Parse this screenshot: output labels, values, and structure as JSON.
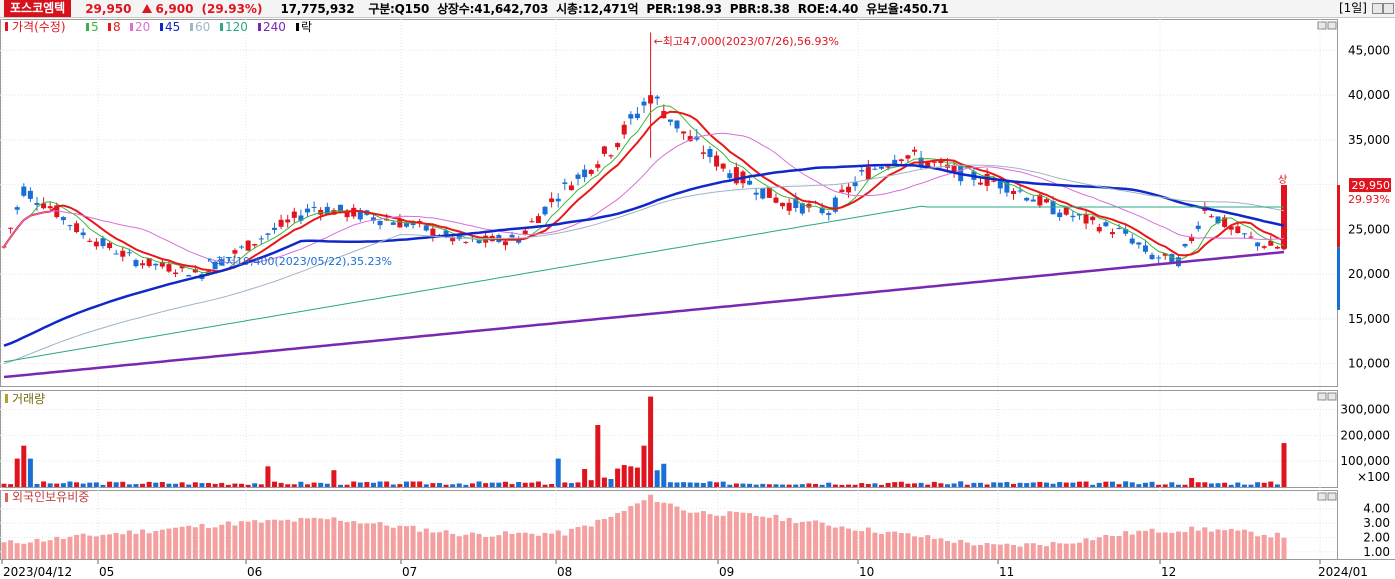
{
  "header": {
    "stock_name": "포스코엠텍",
    "price": "29,950",
    "change": "6,900",
    "change_pct": "(29.93%)",
    "volume": "17,775,932",
    "market": "구분:Q150",
    "shares": "상장수:41,642,703",
    "market_cap": "시총:12,471억",
    "per": "PER:198.93",
    "pbr": "PBR:8.38",
    "roe": "ROE:4.40",
    "float_ratio": "유보율:450.71",
    "period": "[1일]"
  },
  "colors": {
    "up": "#e0141e",
    "down": "#1a6fd6",
    "ma5": "#3cb43c",
    "ma8": "#e81818",
    "ma20": "#d870d8",
    "ma45": "#1028c8",
    "ma60": "#a0b4c4",
    "ma120": "#2aa888",
    "ma240": "#7a28b4",
    "foreign": "#f4a0a0"
  },
  "chart_data": [
    {
      "type": "line",
      "title": "가격(수정)",
      "legend": [
        "5",
        "8",
        "20",
        "45",
        "60",
        "120",
        "240",
        "락"
      ],
      "y_ticks": [
        "45,000",
        "40,000",
        "35,000",
        "30,000",
        "25,000",
        "20,000",
        "15,000",
        "10,000"
      ],
      "ylim": [
        7500,
        48500
      ],
      "x_ticks": [
        "2023/04/12",
        "05",
        "06",
        "07",
        "08",
        "09",
        "10",
        "11",
        "12",
        "2024/01"
      ],
      "last_price_label": "29,950",
      "last_pct_label": "29.93%",
      "upper_limit_label": "상",
      "annotations": {
        "high": "최고47,000(2023/07/26),56.93%",
        "low": "최저19,400(2023/05/22),35.23%"
      },
      "ohlc_sample": [
        {
          "date": "2023/04/12",
          "close": 22000
        },
        {
          "date": "2023/07/26",
          "high": 47000
        },
        {
          "date": "2023/05/22",
          "low": 19400
        },
        {
          "date": "last",
          "close": 29950
        }
      ],
      "series": [
        {
          "name": "5",
          "values_est": [
            23000,
            29500,
            27000,
            20000,
            21500,
            24500,
            27500,
            25500,
            24000,
            29000,
            39000,
            31000,
            28000,
            27000,
            31000,
            34000,
            31500,
            27000,
            24000,
            22000,
            27500,
            25000,
            23500,
            22500,
            23500
          ]
        },
        {
          "name": "45",
          "values_est": [
            12000,
            17000,
            20000,
            22500,
            24500,
            25500,
            24000,
            25000,
            27500,
            29500,
            30000,
            31000,
            31500,
            30500,
            28000,
            25500,
            24500,
            23500,
            23500
          ]
        },
        {
          "name": "240",
          "values_est": [
            8500,
            10000,
            11500,
            13000,
            14500,
            16000,
            17500,
            19000,
            20500,
            21500,
            22500
          ]
        }
      ]
    },
    {
      "type": "bar",
      "title": "거래량",
      "y_ticks": [
        "300,000",
        "200,000",
        "100,000"
      ],
      "unit": "×100",
      "ylim": [
        0,
        360000
      ],
      "peaks": [
        {
          "date": "2023/07/26",
          "value": 350000
        },
        {
          "date": "last",
          "value": 175000
        }
      ]
    },
    {
      "type": "bar",
      "title": "외국인보유비중",
      "y_ticks": [
        "4.00",
        "3.00",
        "2.00",
        "1.00"
      ],
      "ylim": [
        0.5,
        5.3
      ]
    }
  ]
}
